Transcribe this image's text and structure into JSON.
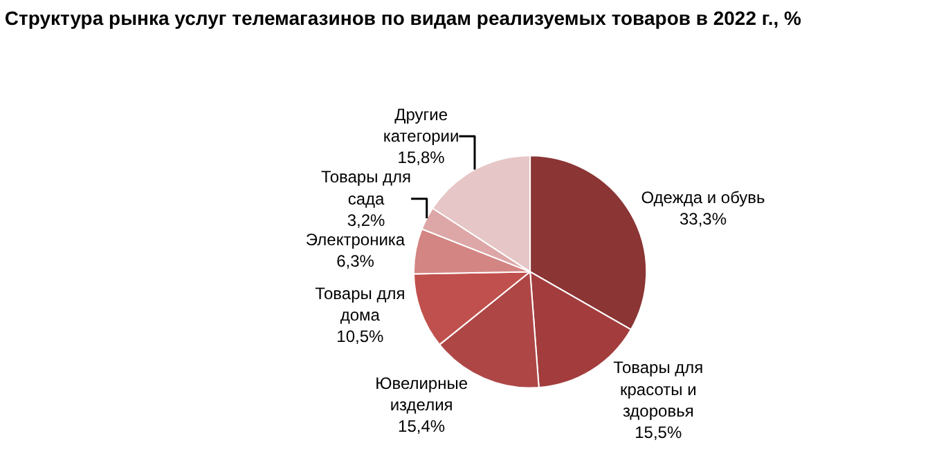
{
  "chart_data": {
    "type": "pie",
    "title": "Структура рынка услуг телемагазинов по видам реализуемых товаров в 2022 г., %",
    "categories": [
      "Одежда и обувь",
      "Товары для красоты и здоровья",
      "Ювелирные изделия",
      "Товары для дома",
      "Электроника",
      "Товары для сада",
      "Другие категории"
    ],
    "values": [
      33.3,
      15.5,
      15.4,
      10.5,
      6.3,
      3.2,
      15.8
    ],
    "value_labels": [
      "33,3%",
      "15,5%",
      "15,4%",
      "10,5%",
      "6,3%",
      "3,2%",
      "15,8%"
    ],
    "colors": [
      "#8b3535",
      "#a33d3d",
      "#ae4646",
      "#c0504d",
      "#d38583",
      "#dda7a7",
      "#e6c6c6"
    ],
    "legend": false
  }
}
